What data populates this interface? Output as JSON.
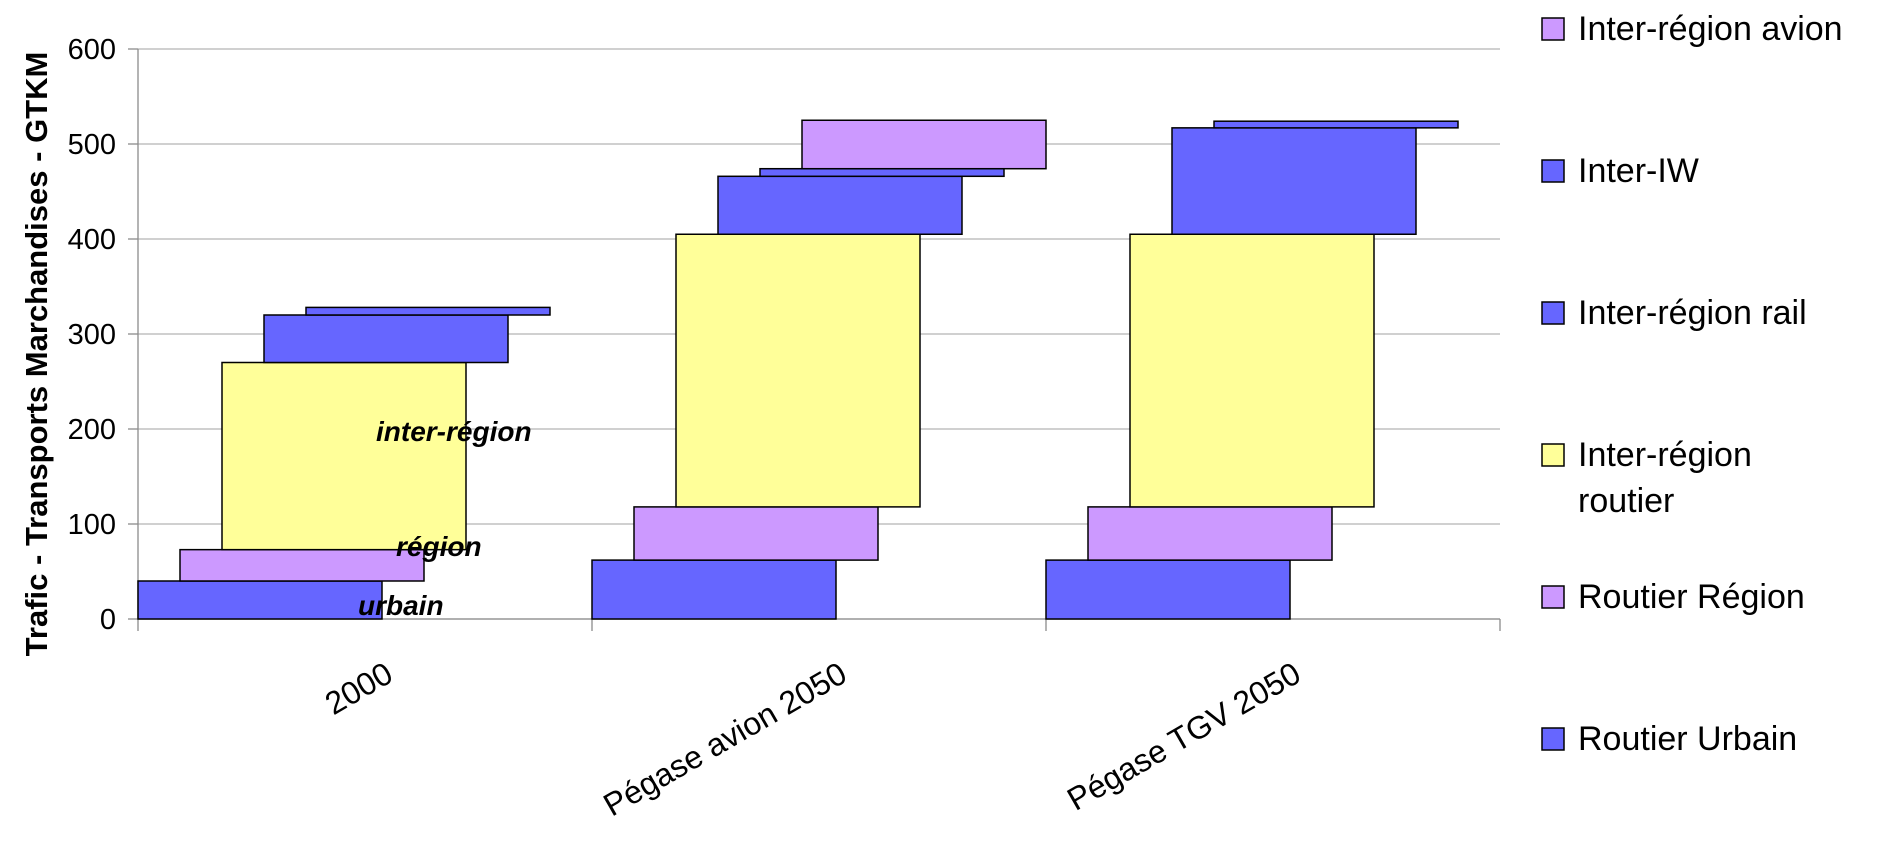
{
  "chart_data": {
    "type": "bar",
    "categories": [
      "2000",
      "Pégase avion 2050",
      "Pégase TGV 2050"
    ],
    "ylabel": "Trafic - Transports Marchandises - GTKM",
    "ylim": [
      0,
      600
    ],
    "yticks": [
      0,
      100,
      200,
      300,
      400,
      500,
      600
    ],
    "grid": true,
    "legend_position": "right",
    "series": [
      {
        "name": "Routier Urbain",
        "color": "#6666ff",
        "values": [
          [
            0,
            40
          ],
          [
            0,
            62
          ],
          [
            0,
            62
          ]
        ]
      },
      {
        "name": "Routier Région",
        "color": "#cc99ff",
        "values": [
          [
            40,
            73
          ],
          [
            62,
            118
          ],
          [
            62,
            118
          ]
        ]
      },
      {
        "name": "Inter-région routier",
        "color": "#ffff99",
        "values": [
          [
            73,
            270
          ],
          [
            118,
            405
          ],
          [
            118,
            405
          ]
        ]
      },
      {
        "name": "Inter-région rail",
        "color": "#6666ff",
        "values": [
          [
            270,
            320
          ],
          [
            405,
            466
          ],
          [
            405,
            517
          ]
        ]
      },
      {
        "name": "Inter-IW",
        "color": "#6666ff",
        "values": [
          [
            320,
            328
          ],
          [
            466,
            474
          ],
          [
            517,
            524
          ]
        ]
      },
      {
        "name": "Inter-région avion",
        "color": "#cc99ff",
        "values": [
          [
            328,
            328
          ],
          [
            474,
            525
          ],
          [
            524,
            524
          ]
        ]
      }
    ],
    "annotations": [
      {
        "text": "urbain",
        "category": 0,
        "y": 15
      },
      {
        "text": "région",
        "category": 0,
        "y": 77
      },
      {
        "text": "inter-région",
        "category": 0,
        "y": 198
      }
    ],
    "legend": [
      {
        "label_lines": [
          "Inter-région avion"
        ],
        "color": "#cc99ff"
      },
      {
        "label_lines": [
          "Inter-IW"
        ],
        "color": "#6666ff"
      },
      {
        "label_lines": [
          "Inter-région rail"
        ],
        "color": "#6666ff"
      },
      {
        "label_lines": [
          "Inter-région",
          "routier"
        ],
        "color": "#ffff99"
      },
      {
        "label_lines": [
          "Routier Région"
        ],
        "color": "#cc99ff"
      },
      {
        "label_lines": [
          "Routier Urbain"
        ],
        "color": "#6666ff"
      }
    ]
  }
}
